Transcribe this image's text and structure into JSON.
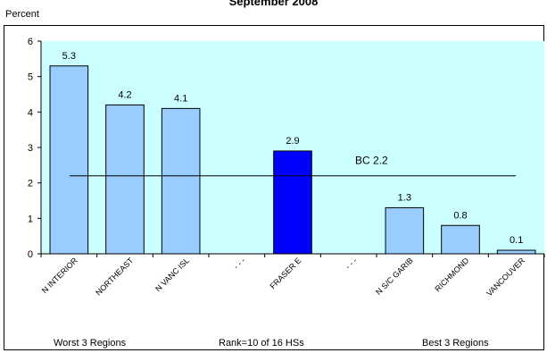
{
  "chart_data": {
    "type": "bar",
    "title": "September 2008",
    "ylabel": "Percent",
    "ylim": [
      0,
      6
    ],
    "yticks": [
      "0",
      "1",
      "2",
      "3",
      "4",
      "5",
      "6"
    ],
    "categories": [
      "N INTERIOR",
      "NORTHEAST",
      "N VANC ISL",
      "- - -",
      "FRASER E",
      "- - -",
      "N S/C GARIB",
      "RICHMOND",
      "VANCOUVER"
    ],
    "values": [
      5.3,
      4.2,
      4.1,
      null,
      2.9,
      null,
      1.3,
      0.8,
      0.1
    ],
    "value_labels": [
      "5.3",
      "4.2",
      "4.1",
      "",
      "2.9",
      "",
      "1.3",
      "0.8",
      "0.1"
    ],
    "highlight_index": 4,
    "reference_line": {
      "label": "BC 2.2",
      "value": 2.2
    },
    "grid": false,
    "plot_background": "#ccffff",
    "colors": {
      "bar": "#99ccff",
      "highlight": "#0000ff",
      "line": "#000000"
    }
  },
  "footer": {
    "left": "Worst 3 Regions",
    "center": "Rank=10 of 16 HSs",
    "right": "Best 3 Regions"
  }
}
